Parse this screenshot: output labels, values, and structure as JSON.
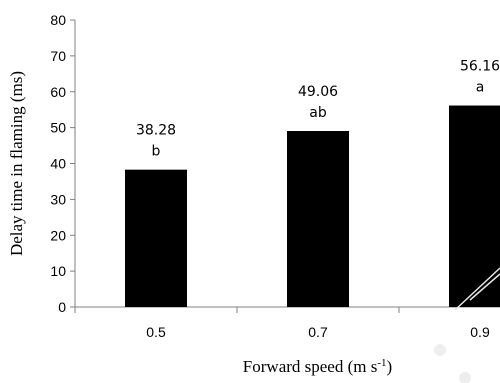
{
  "chart_data": {
    "type": "bar",
    "categories": [
      "0.5",
      "0.7",
      "0.9"
    ],
    "values": [
      38.28,
      49.06,
      56.16
    ],
    "value_labels": [
      "38.28",
      "49.06",
      "56.16"
    ],
    "significance_letters": [
      "b",
      "ab",
      "a"
    ],
    "ylabel": "Delay time in flaming (ms)",
    "xlabel_main": "Forward speed (m s",
    "xlabel_sup": "-1",
    "xlabel_end": ")",
    "ylim": [
      0,
      80
    ],
    "yticks": [
      0,
      10,
      20,
      30,
      40,
      50,
      60,
      70,
      80
    ],
    "bar_color": "#000000",
    "grid": false,
    "legend": "none"
  }
}
